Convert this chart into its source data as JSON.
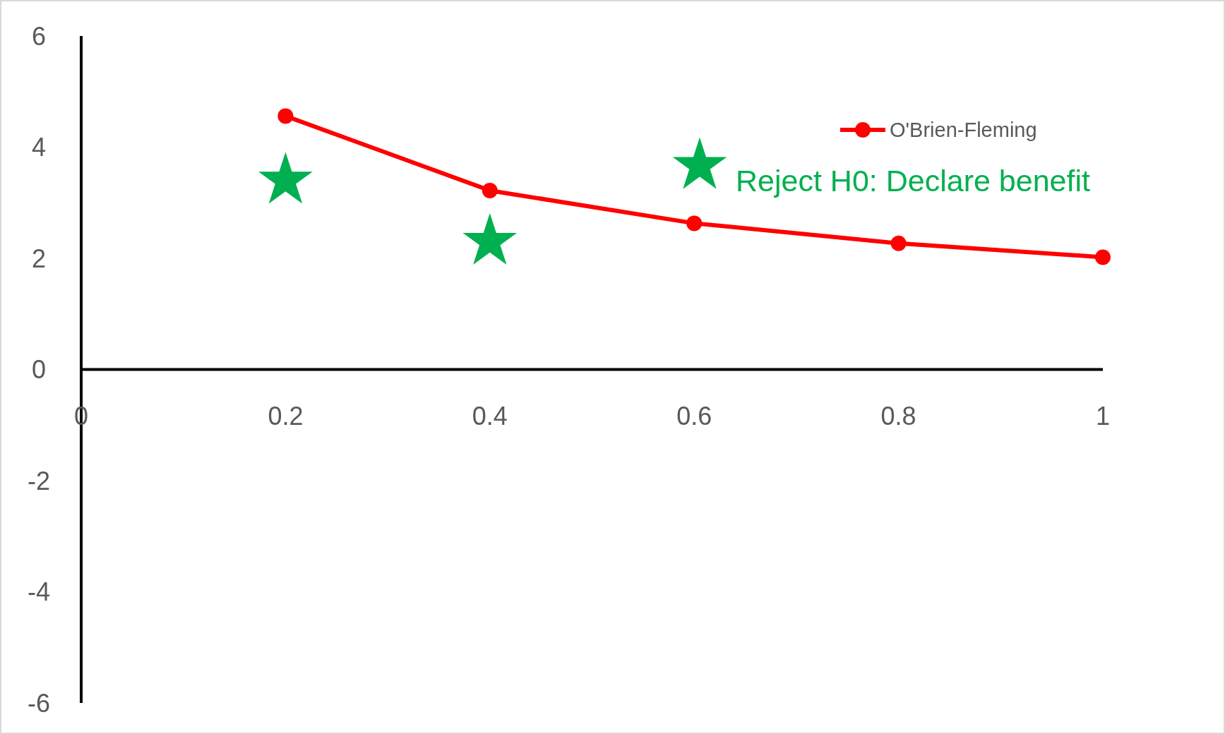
{
  "chart_data": {
    "type": "line",
    "x": [
      0.2,
      0.4,
      0.6,
      0.8,
      1
    ],
    "series": [
      {
        "name": "O'Brien-Fleming",
        "color": "#ff0000",
        "marker": "circle",
        "values": [
          4.56,
          3.22,
          2.63,
          2.27,
          2.02
        ]
      },
      {
        "name": "Reject H0: Declare benefit",
        "type": "scatter",
        "color": "#00b050",
        "marker": "star",
        "values": [
          3.4,
          2.3,
          null,
          null,
          null
        ]
      }
    ],
    "xlim": [
      0,
      1
    ],
    "xticks": [
      0,
      0.2,
      0.4,
      0.6,
      0.8,
      1
    ],
    "ylim": [
      -6,
      6
    ],
    "yticks": [
      -6,
      -4,
      -2,
      0,
      2,
      4,
      6
    ],
    "grid": false,
    "legend": "top right"
  }
}
